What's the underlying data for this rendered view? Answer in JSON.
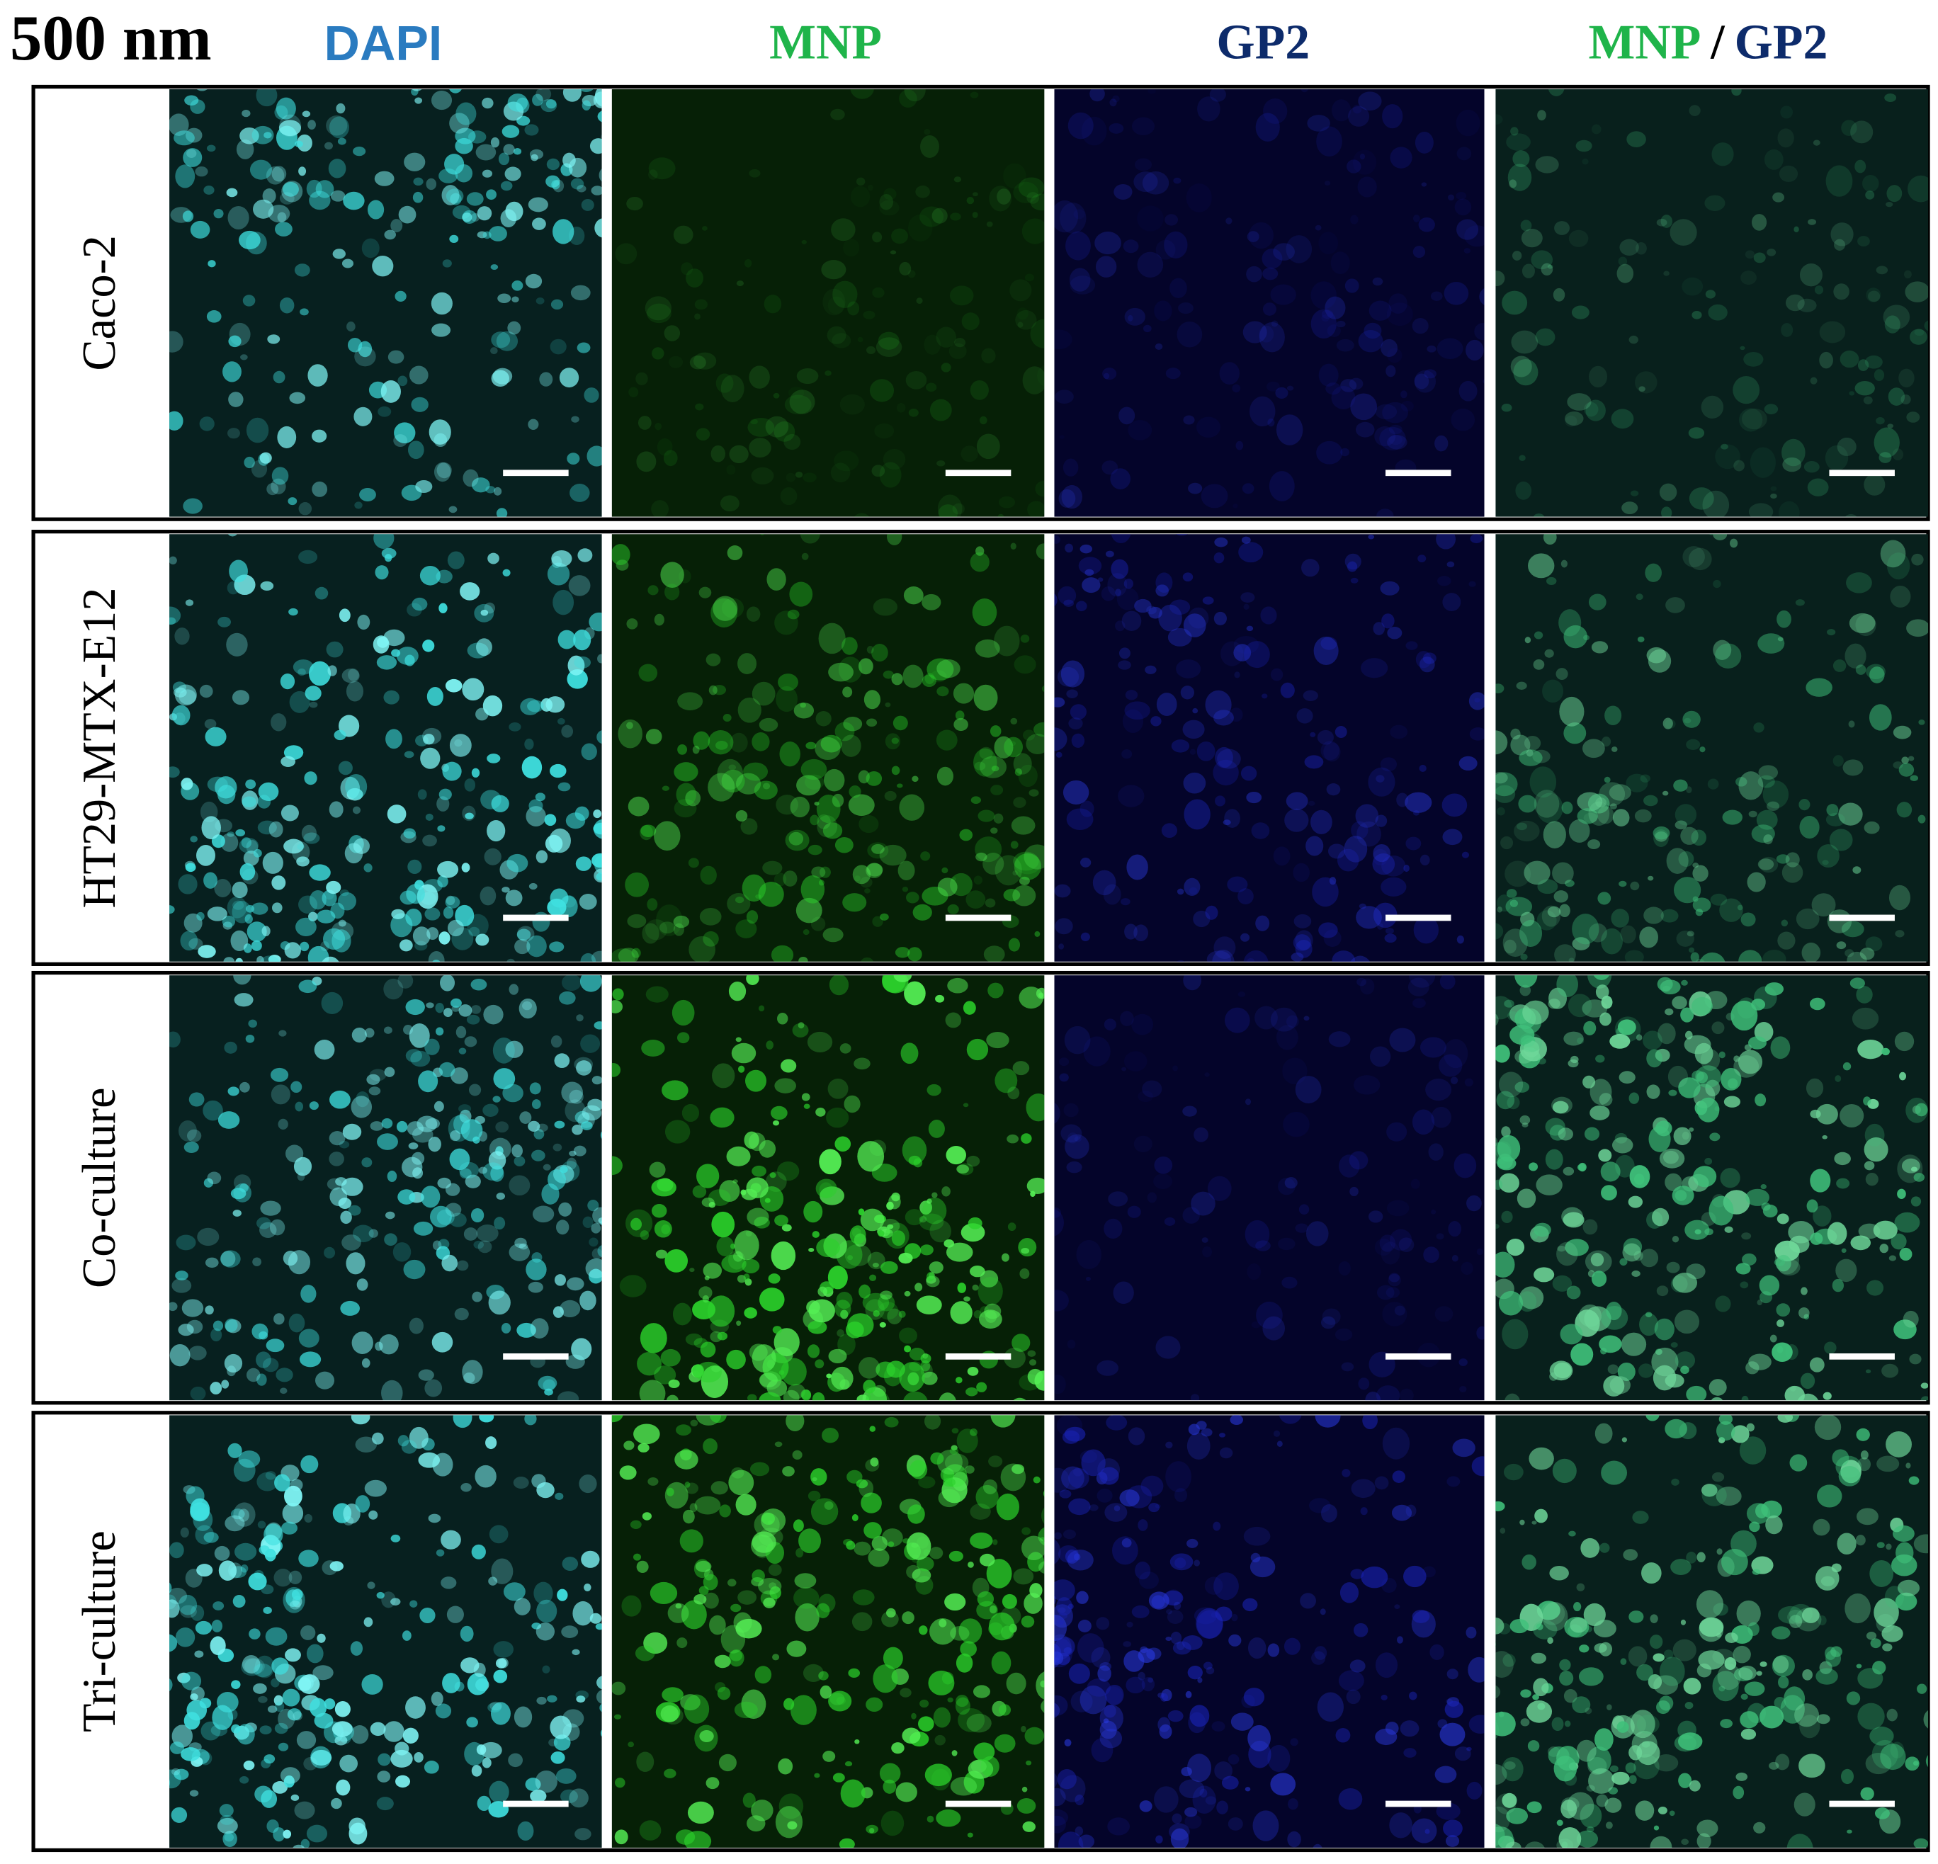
{
  "header": {
    "title": "500 nm",
    "columns": [
      "DAPI",
      "MNP",
      "GP2"
    ],
    "merged": {
      "first": "MNP",
      "separator": "/",
      "second": "GP2"
    }
  },
  "rows": [
    "Caco-2",
    "HT29-MTX-E12",
    "Co-culture",
    "Tri-culture"
  ]
}
